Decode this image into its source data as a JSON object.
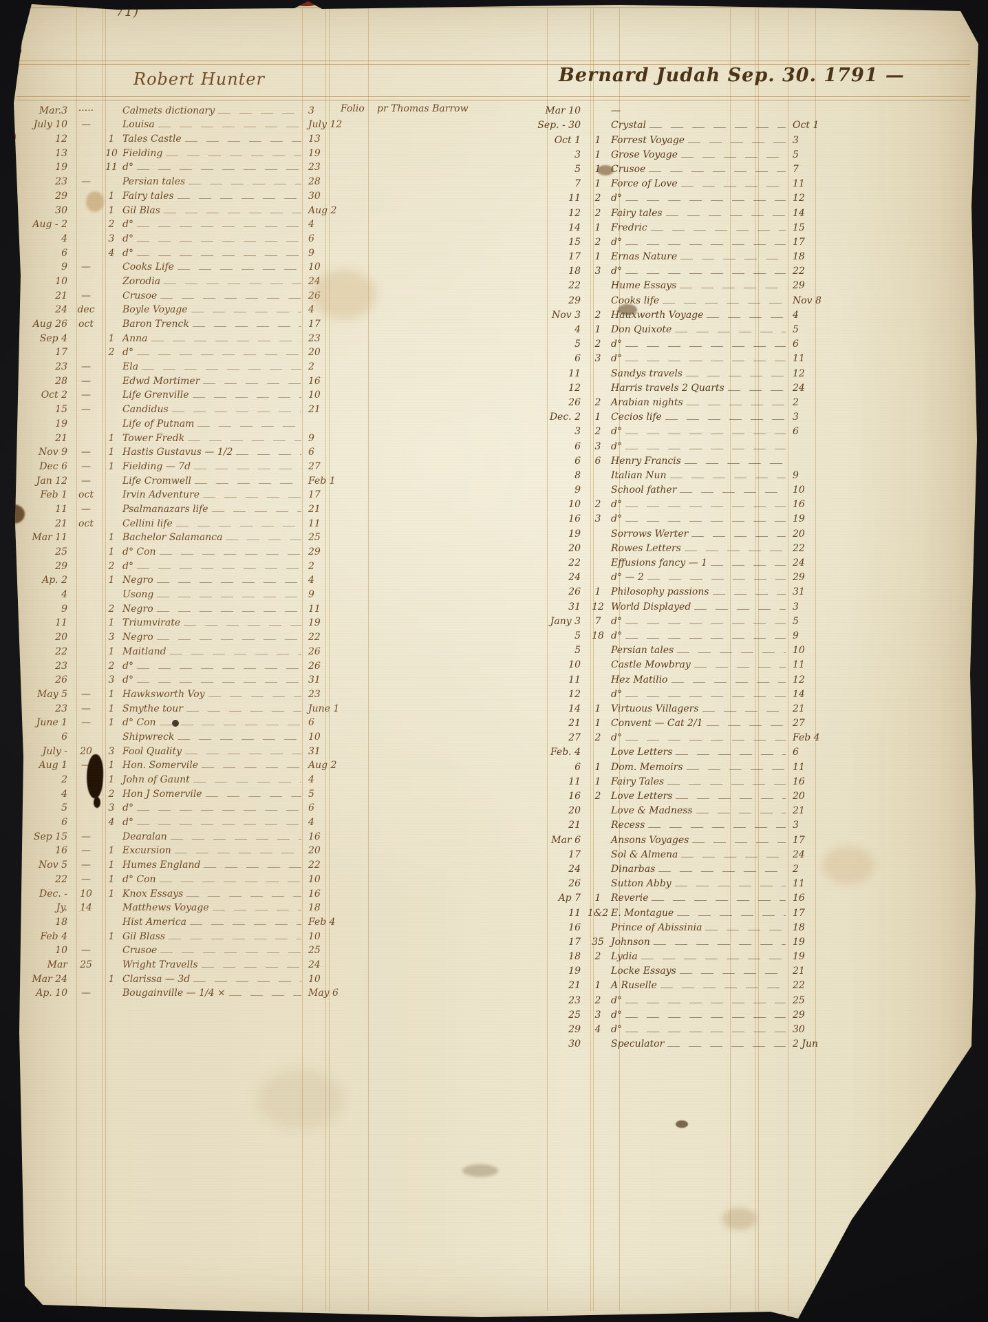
{
  "page": {
    "number": "71)"
  },
  "colors": {
    "ink_left": "#6e4c27",
    "ink_right": "#5b3d1d",
    "rule": "#ba8a44",
    "paper": "#e9e0c6",
    "red_mark": "#9e3524"
  },
  "left_ledger": {
    "header": "Robert Hunter",
    "first_row_notes": {
      "format": "Folio",
      "lender": "pr Thomas Barrow"
    },
    "rows": [
      [
        "Mar.3",
        "·····",
        "",
        "Calmets dictionary",
        "3",
        "Folio",
        "pr Thomas Barrow"
      ],
      [
        "July 10",
        "—",
        "",
        "Louisa",
        "July 12"
      ],
      [
        "12",
        "",
        "1",
        "Tales Castle",
        "13"
      ],
      [
        "13",
        "",
        "10",
        "Fielding",
        "19"
      ],
      [
        "19",
        "",
        "11",
        "d°",
        "23"
      ],
      [
        "23",
        "—",
        "",
        "Persian tales",
        "28"
      ],
      [
        "29",
        "",
        "1",
        "Fairy tales",
        "30"
      ],
      [
        "30",
        "",
        "1",
        "Gil Blas",
        "Aug 2"
      ],
      [
        "Aug - 2",
        "",
        "2",
        "d°",
        "4"
      ],
      [
        "4",
        "",
        "3",
        "d°",
        "6"
      ],
      [
        "6",
        "",
        "4",
        "d°",
        "9"
      ],
      [
        "9",
        "—",
        "",
        "Cooks Life",
        "10"
      ],
      [
        "10",
        "",
        "",
        "Zorodia",
        "24"
      ],
      [
        "21",
        "—",
        "",
        "Crusoe",
        "26"
      ],
      [
        "24",
        "dec",
        "",
        "Boyle Voyage",
        "4"
      ],
      [
        "Aug 26",
        "oct",
        "",
        "Baron Trenck",
        "17"
      ],
      [
        "Sep 4",
        "",
        "1",
        "Anna",
        "23"
      ],
      [
        "17",
        "",
        "2",
        "d°",
        "20"
      ],
      [
        "23",
        "—",
        "",
        "Ela",
        "2"
      ],
      [
        "28",
        "—",
        "",
        "Edwd Mortimer",
        "16"
      ],
      [
        "Oct 2",
        "—",
        "",
        "Life Grenville",
        "10"
      ],
      [
        "15",
        "—",
        "",
        "Candidus",
        "21"
      ],
      [
        "19",
        "",
        "",
        "Life of Putnam",
        ""
      ],
      [
        "21",
        "",
        "1",
        "Tower Fredk",
        "9"
      ],
      [
        "Nov 9",
        "—",
        "1",
        "Hastis Gustavus — 1/2",
        "6"
      ],
      [
        "Dec 6",
        "—",
        "1",
        "Fielding — 7d",
        "27"
      ],
      [
        "Jan 12",
        "—",
        "",
        "Life Cromwell",
        "Feb 1"
      ],
      [
        "Feb 1",
        "oct",
        "",
        "Irvin Adventure",
        "17"
      ],
      [
        "11",
        "—",
        "",
        "Psalmanazars life",
        "21"
      ],
      [
        "21",
        "oct",
        "",
        "Cellini life",
        "11"
      ],
      [
        "Mar 11",
        "",
        "1",
        "Bachelor Salamanca",
        "25"
      ],
      [
        "25",
        "",
        "1",
        "d° Con",
        "29"
      ],
      [
        "29",
        "",
        "2",
        "d°",
        "2"
      ],
      [
        "Ap. 2",
        "",
        "1",
        "Negro",
        "4"
      ],
      [
        "4",
        "",
        "",
        "Usong",
        "9"
      ],
      [
        "9",
        "",
        "2",
        "Negro",
        "11"
      ],
      [
        "11",
        "",
        "1",
        "Triumvirate",
        "19"
      ],
      [
        "20",
        "",
        "3",
        "Negro",
        "22"
      ],
      [
        "22",
        "",
        "1",
        "Maitland",
        "26"
      ],
      [
        "23",
        "",
        "2",
        "d°",
        "26"
      ],
      [
        "26",
        "",
        "3",
        "d°",
        "31"
      ],
      [
        "May 5",
        "—",
        "1",
        "Hawksworth Voy",
        "23"
      ],
      [
        "23",
        "—",
        "1",
        "Smythe tour",
        "June 1"
      ],
      [
        "June 1",
        "—",
        "1",
        "d° Con",
        "6"
      ],
      [
        "6",
        "",
        "",
        "Shipwreck",
        "10"
      ],
      [
        "July -",
        "20",
        "3",
        "Fool Quality",
        "31"
      ],
      [
        "Aug 1",
        "—",
        "1",
        "Hon. Somervile",
        "Aug 2"
      ],
      [
        "2",
        "",
        "1",
        "John of Gaunt",
        "4"
      ],
      [
        "4",
        "",
        "2",
        "Hon J Somervile",
        "5"
      ],
      [
        "5",
        "",
        "3",
        "d°",
        "6"
      ],
      [
        "6",
        "",
        "4",
        "d°",
        "4"
      ],
      [
        "Sep 15",
        "—",
        "",
        "Dearalan",
        "16"
      ],
      [
        "16",
        "—",
        "1",
        "Excursion",
        "20"
      ],
      [
        "Nov 5",
        "—",
        "1",
        "Humes England",
        "22"
      ],
      [
        "22",
        "—",
        "1",
        "d° Con",
        "10"
      ],
      [
        "Dec. -",
        "10",
        "1",
        "Knox Essays",
        "16"
      ],
      [
        "Jy.",
        "14",
        "",
        "Matthews Voyage",
        "18"
      ],
      [
        "18",
        "",
        "",
        "Hist America",
        "Feb 4"
      ],
      [
        "Feb 4",
        "",
        "1",
        "Gil Blass",
        "10"
      ],
      [
        "10",
        "—",
        "",
        "Crusoe",
        "25"
      ],
      [
        "Mar",
        "25",
        "",
        "Wright Travells",
        "24"
      ],
      [
        "Mar 24",
        "",
        "1",
        "Clarissa — 3d",
        "10"
      ],
      [
        "Ap. 10",
        "—",
        "",
        "Bougainville — 1/4 ×",
        "May 6"
      ]
    ]
  },
  "right_ledger": {
    "header": "Bernard Judah Sep. 30. 1791 —",
    "rows": [
      [
        "Mar 10",
        "",
        "—",
        ""
      ],
      [
        "Sep. - 30",
        "",
        "Crystal",
        "Oct 1"
      ],
      [
        "Oct 1",
        "1",
        "Forrest Voyage",
        "3"
      ],
      [
        "3",
        "1",
        "Grose Voyage",
        "5"
      ],
      [
        "5",
        "1",
        "Crusoe",
        "7"
      ],
      [
        "7",
        "1",
        "Force of Love",
        "11"
      ],
      [
        "11",
        "2",
        "d°",
        "12"
      ],
      [
        "12",
        "2",
        "Fairy tales",
        "14"
      ],
      [
        "14",
        "1",
        "Fredric",
        "15"
      ],
      [
        "15",
        "2",
        "d°",
        "17"
      ],
      [
        "17",
        "1",
        "Ernas Nature",
        "18"
      ],
      [
        "18",
        "3",
        "d°",
        "22"
      ],
      [
        "22",
        "",
        "Hume Essays",
        "29"
      ],
      [
        "29",
        "",
        "Cooks life",
        "Nov 8"
      ],
      [
        "Nov 3",
        "2",
        "Hauxworth Voyage",
        "4"
      ],
      [
        "4",
        "1",
        "Don Quixote",
        "5"
      ],
      [
        "5",
        "2",
        "d°",
        "6"
      ],
      [
        "6",
        "3",
        "d°",
        "11"
      ],
      [
        "11",
        "",
        "Sandys travels",
        "12"
      ],
      [
        "12",
        "",
        "Harris travels 2 Quarts",
        "24"
      ],
      [
        "26",
        "2",
        "Arabian nights",
        "2"
      ],
      [
        "Dec. 2",
        "1",
        "Cecios life",
        "3"
      ],
      [
        "3",
        "2",
        "d°",
        "6"
      ],
      [
        "6",
        "3",
        "d°",
        ""
      ],
      [
        "6",
        "6",
        "Henry Francis",
        ""
      ],
      [
        "8",
        "",
        "Italian Nun",
        "9"
      ],
      [
        "9",
        "",
        "School father",
        "10"
      ],
      [
        "10",
        "2",
        "d°",
        "16"
      ],
      [
        "16",
        "3",
        "d°",
        "19"
      ],
      [
        "19",
        "",
        "Sorrows Werter",
        "20"
      ],
      [
        "20",
        "",
        "Rowes Letters",
        "22"
      ],
      [
        "22",
        "",
        "Effusions fancy — 1",
        "24"
      ],
      [
        "24",
        "",
        "d° — 2",
        "29"
      ],
      [
        "26",
        "1",
        "Philosophy passions",
        "31"
      ],
      [
        "31",
        "12",
        "World Displayed",
        "3"
      ],
      [
        "Jany 3",
        "7",
        "d°",
        "5"
      ],
      [
        "5",
        "18",
        "d°",
        "9"
      ],
      [
        "5",
        "",
        "Persian tales",
        "10"
      ],
      [
        "10",
        "",
        "Castle Mowbray",
        "11"
      ],
      [
        "11",
        "",
        "Hez Matilio",
        "12"
      ],
      [
        "12",
        "",
        "d°",
        "14"
      ],
      [
        "14",
        "1",
        "Virtuous Villagers",
        "21"
      ],
      [
        "21",
        "1",
        "Convent — Cat 2/1",
        "27"
      ],
      [
        "27",
        "2",
        "d°",
        "Feb 4"
      ],
      [
        "Feb. 4",
        "",
        "Love Letters",
        "6"
      ],
      [
        "6",
        "1",
        "Dom. Memoirs",
        "11"
      ],
      [
        "11",
        "1",
        "Fairy Tales",
        "16"
      ],
      [
        "16",
        "2",
        "Love Letters",
        "20"
      ],
      [
        "20",
        "",
        "Love & Madness",
        "21"
      ],
      [
        "21",
        "",
        "Recess",
        "3"
      ],
      [
        "Mar 6",
        "",
        "Ansons Voyages",
        "17"
      ],
      [
        "17",
        "",
        "Sol & Almena",
        "24"
      ],
      [
        "24",
        "",
        "Dinarbas",
        "2"
      ],
      [
        "26",
        "",
        "Sutton Abby",
        "11"
      ],
      [
        "Ap 7",
        "1",
        "Reverie",
        "16"
      ],
      [
        "11",
        "1&2",
        "E. Montague",
        "17"
      ],
      [
        "16",
        "",
        "Prince of Abissinia",
        "18"
      ],
      [
        "17",
        "35",
        "Johnson",
        "19"
      ],
      [
        "18",
        "2",
        "Lydia",
        "19"
      ],
      [
        "19",
        "",
        "Locke Essays",
        "21"
      ],
      [
        "21",
        "1",
        "A Ruselle",
        "22"
      ],
      [
        "23",
        "2",
        "d°",
        "25"
      ],
      [
        "25",
        "3",
        "d°",
        "29"
      ],
      [
        "29",
        "4",
        "d°",
        "30"
      ],
      [
        "30",
        "",
        "Speculator",
        "2 Jun"
      ]
    ]
  }
}
